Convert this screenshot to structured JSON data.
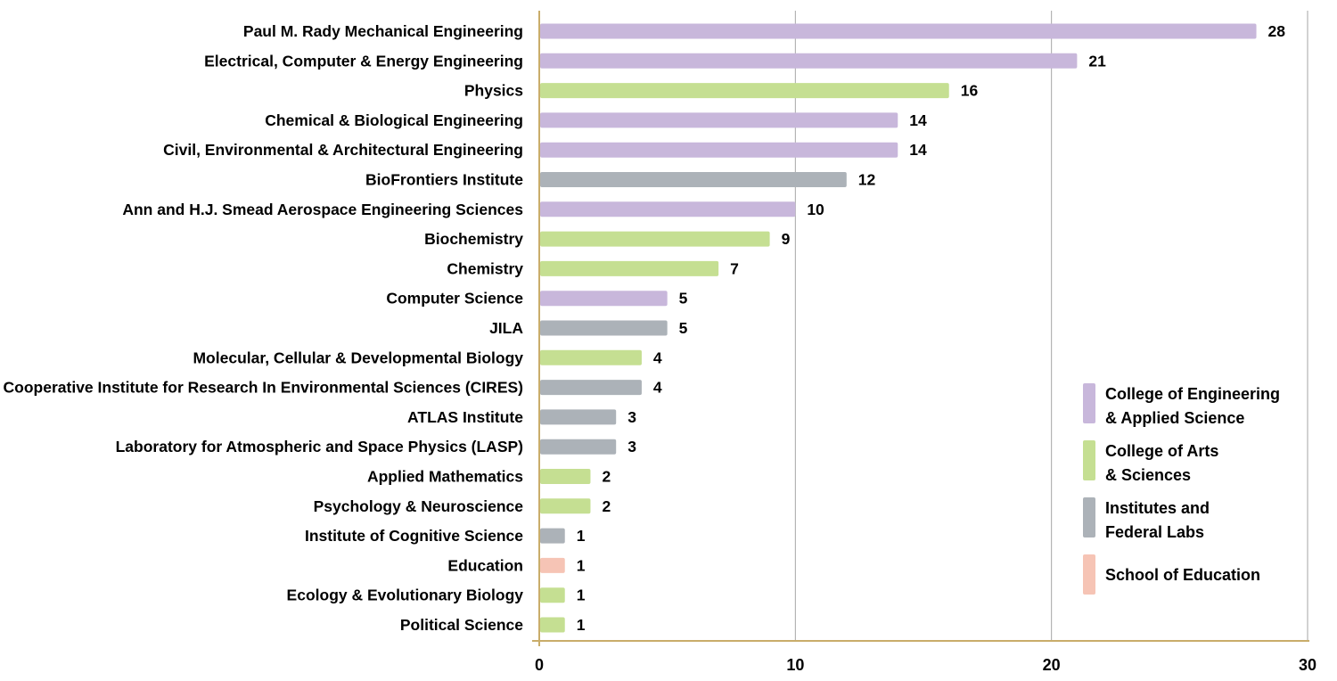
{
  "chart_data": {
    "type": "bar",
    "orientation": "horizontal",
    "title": "",
    "xlabel": "",
    "ylabel": "",
    "xlim": [
      0,
      30
    ],
    "xticks": [
      0,
      10,
      20,
      30
    ],
    "grid": "vertical",
    "legend_position": "bottom-right",
    "groups": [
      {
        "key": "eng",
        "label_lines": [
          "College of Engineering",
          "& Applied Science"
        ],
        "color": "#c8b7db"
      },
      {
        "key": "arts",
        "label_lines": [
          "College of Arts",
          "& Sciences"
        ],
        "color": "#c5df92"
      },
      {
        "key": "inst",
        "label_lines": [
          "Institutes and",
          "Federal Labs"
        ],
        "color": "#acb2b8"
      },
      {
        "key": "edu",
        "label_lines": [
          "School of Education"
        ],
        "color": "#f6c4b5"
      }
    ],
    "bars": [
      {
        "category": "Paul M. Rady Mechanical Engineering",
        "value": 28,
        "group": "eng"
      },
      {
        "category": "Electrical, Computer & Energy Engineering",
        "value": 21,
        "group": "eng"
      },
      {
        "category": "Physics",
        "value": 16,
        "group": "arts"
      },
      {
        "category": "Chemical & Biological Engineering",
        "value": 14,
        "group": "eng"
      },
      {
        "category": "Civil, Environmental & Architectural Engineering",
        "value": 14,
        "group": "eng"
      },
      {
        "category": "BioFrontiers Institute",
        "value": 12,
        "group": "inst"
      },
      {
        "category": "Ann and H.J. Smead Aerospace Engineering Sciences",
        "value": 10,
        "group": "eng"
      },
      {
        "category": "Biochemistry",
        "value": 9,
        "group": "arts"
      },
      {
        "category": "Chemistry",
        "value": 7,
        "group": "arts"
      },
      {
        "category": "Computer Science",
        "value": 5,
        "group": "eng"
      },
      {
        "category": "JILA",
        "value": 5,
        "group": "inst"
      },
      {
        "category": "Molecular, Cellular & Developmental Biology",
        "value": 4,
        "group": "arts"
      },
      {
        "category": "Cooperative Institute for Research In Environmental Sciences (CIRES)",
        "value": 4,
        "group": "inst"
      },
      {
        "category": "ATLAS Institute",
        "value": 3,
        "group": "inst"
      },
      {
        "category": "Laboratory for Atmospheric and Space Physics (LASP)",
        "value": 3,
        "group": "inst"
      },
      {
        "category": "Applied Mathematics",
        "value": 2,
        "group": "arts"
      },
      {
        "category": "Psychology & Neuroscience",
        "value": 2,
        "group": "arts"
      },
      {
        "category": "Institute of Cognitive Science",
        "value": 1,
        "group": "inst"
      },
      {
        "category": "Education",
        "value": 1,
        "group": "edu"
      },
      {
        "category": "Ecology & Evolutionary Biology",
        "value": 1,
        "group": "arts"
      },
      {
        "category": "Political Science",
        "value": 1,
        "group": "arts"
      }
    ]
  }
}
